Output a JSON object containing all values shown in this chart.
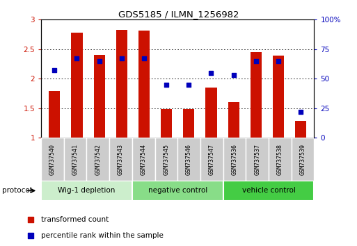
{
  "title": "GDS5185 / ILMN_1256982",
  "samples": [
    "GSM737540",
    "GSM737541",
    "GSM737542",
    "GSM737543",
    "GSM737544",
    "GSM737545",
    "GSM737546",
    "GSM737547",
    "GSM737536",
    "GSM737537",
    "GSM737538",
    "GSM737539"
  ],
  "transformed_count": [
    1.79,
    2.78,
    2.4,
    2.83,
    2.82,
    1.49,
    1.49,
    1.85,
    1.6,
    2.45,
    2.39,
    1.28
  ],
  "percentile_rank": [
    57,
    67,
    65,
    67,
    67,
    45,
    45,
    55,
    53,
    65,
    65,
    22
  ],
  "groups": [
    {
      "label": "Wig-1 depletion",
      "indices": [
        0,
        1,
        2,
        3
      ],
      "color": "#cceecc"
    },
    {
      "label": "negative control",
      "indices": [
        4,
        5,
        6,
        7
      ],
      "color": "#88dd88"
    },
    {
      "label": "vehicle control",
      "indices": [
        8,
        9,
        10,
        11
      ],
      "color": "#44cc44"
    }
  ],
  "ylim_left": [
    1.0,
    3.0
  ],
  "ylim_right": [
    0,
    100
  ],
  "yticks_left": [
    1.0,
    1.5,
    2.0,
    2.5,
    3.0
  ],
  "yticks_right": [
    0,
    25,
    50,
    75,
    100
  ],
  "ytick_labels_left": [
    "1",
    "1.5",
    "2",
    "2.5",
    "3"
  ],
  "ytick_labels_right": [
    "0",
    "25",
    "50",
    "75",
    "100%"
  ],
  "bar_color": "#cc1100",
  "dot_color": "#0000bb",
  "bar_width": 0.5,
  "grid_color": "#000000",
  "bg_plot": "#ffffff",
  "label_bg": "#cccccc",
  "protocol_label": "protocol",
  "legend_red": "transformed count",
  "legend_blue": "percentile rank within the sample"
}
